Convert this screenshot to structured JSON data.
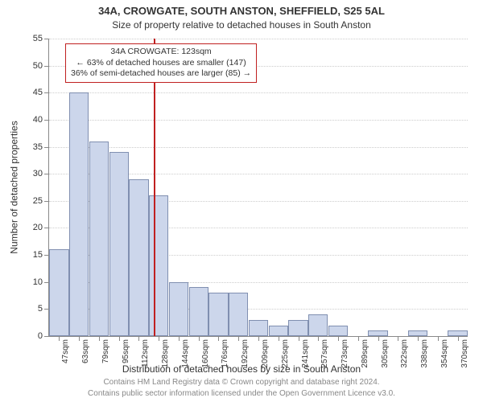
{
  "chart": {
    "type": "histogram",
    "title_line1": "34A, CROWGATE, SOUTH ANSTON, SHEFFIELD, S25 5AL",
    "title_line2": "Size of property relative to detached houses in South Anston",
    "yaxis_label": "Number of detached properties",
    "xaxis_label": "Distribution of detached houses by size in South Anston",
    "ylim": [
      0,
      55
    ],
    "ytick_step": 5,
    "categories": [
      "47sqm",
      "63sqm",
      "79sqm",
      "95sqm",
      "112sqm",
      "128sqm",
      "144sqm",
      "160sqm",
      "176sqm",
      "192sqm",
      "209sqm",
      "225sqm",
      "241sqm",
      "257sqm",
      "273sqm",
      "289sqm",
      "305sqm",
      "322sqm",
      "338sqm",
      "354sqm",
      "370sqm"
    ],
    "values": [
      16,
      45,
      36,
      34,
      29,
      26,
      10,
      9,
      8,
      8,
      3,
      2,
      3,
      4,
      2,
      0,
      1,
      0,
      1,
      0,
      1
    ],
    "bar_fill": "#ccd6eb",
    "bar_stroke": "#808fb0",
    "grid_color": "#cccccc",
    "background_color": "#ffffff",
    "marker": {
      "position_index": 4.75,
      "line_color": "#c02020",
      "box_border": "#c02020",
      "box_bg": "#ffffff",
      "lines": [
        "34A CROWGATE: 123sqm",
        "← 63% of detached houses are smaller (147)",
        "36% of semi-detached houses are larger (85) →"
      ]
    },
    "footer_line1": "Contains HM Land Registry data © Crown copyright and database right 2024.",
    "footer_line2": "Contains public sector information licensed under the Open Government Licence v3.0.",
    "title_fontsize": 13,
    "subtitle_fontsize": 12,
    "axis_label_fontsize": 12,
    "tick_fontsize": 11,
    "footer_fontsize": 10,
    "footer_color": "#888888"
  }
}
